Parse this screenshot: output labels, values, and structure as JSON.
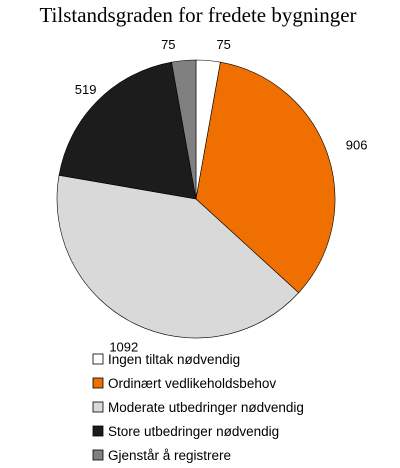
{
  "chart_data": {
    "type": "pie",
    "title": "Tilstandsgraden for fredete bygninger",
    "start_angle_deg": 0,
    "direction": "clockwise",
    "legend_position": "bottom",
    "slices": [
      {
        "label": "Ingen tiltak nødvendig",
        "value": 75,
        "color": "#ffffff"
      },
      {
        "label": "Ordinært vedlikeholdsbehov",
        "value": 906,
        "color": "#ef7000"
      },
      {
        "label": "Moderate utbedringer nødvendig",
        "value": 1092,
        "color": "#d9d9d9"
      },
      {
        "label": "Store utbedringer nødvendig",
        "value": 519,
        "color": "#1c1c1c"
      },
      {
        "label": "Gjenstår å registrere",
        "value": 75,
        "color": "#808080"
      }
    ]
  }
}
